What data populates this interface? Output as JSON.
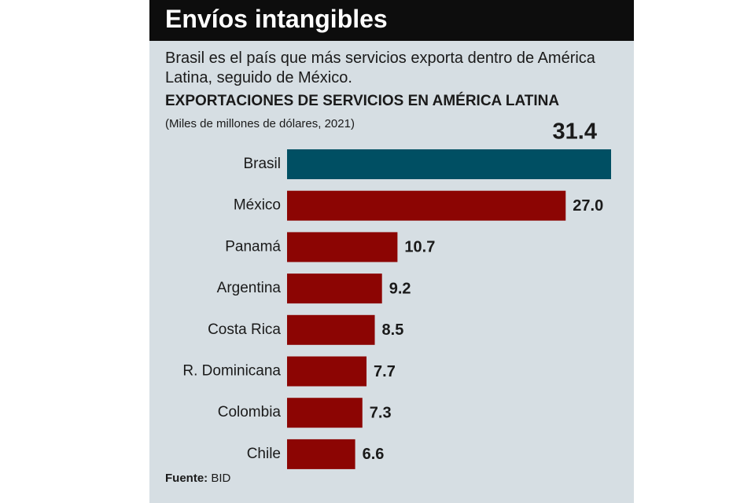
{
  "chart_data": {
    "type": "bar",
    "orientation": "horizontal",
    "header": "Envíos intangibles",
    "subtitle": "Brasil es el país que más servicios exporta dentro de América Latina, seguido de México.",
    "title": "EXPORTACIONES DE SERVICIOS EN AMÉRICA LATINA",
    "units": "(Miles de millones de dólares, 2021)",
    "categories": [
      "Brasil",
      "México",
      "Panamá",
      "Argentina",
      "Costa Rica",
      "R. Dominicana",
      "Colombia",
      "Chile"
    ],
    "values": [
      31.4,
      27.0,
      10.7,
      9.2,
      8.5,
      7.7,
      7.3,
      6.6
    ],
    "value_labels": [
      "31.4",
      "27.0",
      "10.7",
      "9.2",
      "8.5",
      "7.7",
      "7.3",
      "6.6"
    ],
    "colors": [
      "#004f63",
      "#8c0503",
      "#8c0503",
      "#8c0503",
      "#8c0503",
      "#8c0503",
      "#8c0503",
      "#8c0503"
    ],
    "source_label": "Fuente:",
    "source": "BID"
  }
}
